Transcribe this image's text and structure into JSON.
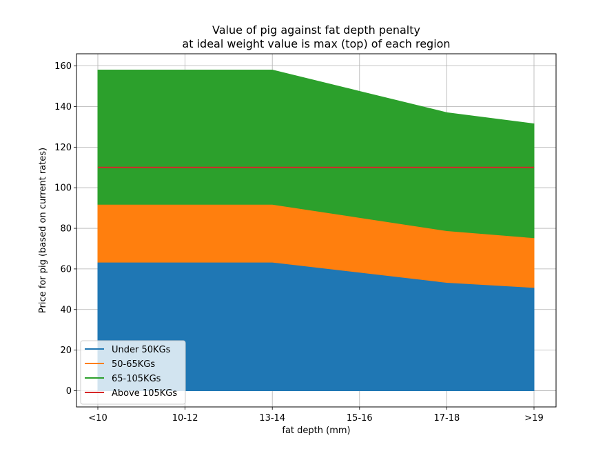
{
  "chart_data": {
    "type": "area",
    "title": [
      "Value of pig against fat depth penalty",
      "at ideal weight value is max (top) of each region"
    ],
    "xlabel": "fat depth (mm)",
    "ylabel": "Price for pig (based on current rates)",
    "categories": [
      "<10",
      "10-12",
      "13-14",
      "15-16",
      "17-18",
      ">19"
    ],
    "ylim": [
      -8,
      166
    ],
    "yticks": [
      0,
      20,
      40,
      60,
      80,
      100,
      120,
      140,
      160
    ],
    "grid": true,
    "legend_position": "lower-left",
    "series": [
      {
        "name": "Under 50KGs",
        "type": "area",
        "color": "#1f77b4",
        "values": [
          63,
          63,
          63,
          58,
          53,
          50.5
        ]
      },
      {
        "name": "50-65KGs",
        "type": "area",
        "color": "#ff7f0e",
        "values": [
          91.5,
          91.5,
          91.5,
          85,
          78.5,
          75
        ]
      },
      {
        "name": "65-105KGs",
        "type": "area",
        "color": "#2ca02c",
        "values": [
          158,
          158,
          158,
          147.5,
          137,
          131.5
        ]
      },
      {
        "name": "Above 105KGs",
        "type": "line",
        "color": "#d62728",
        "values": [
          110,
          110,
          110,
          110,
          110,
          110
        ]
      }
    ]
  }
}
